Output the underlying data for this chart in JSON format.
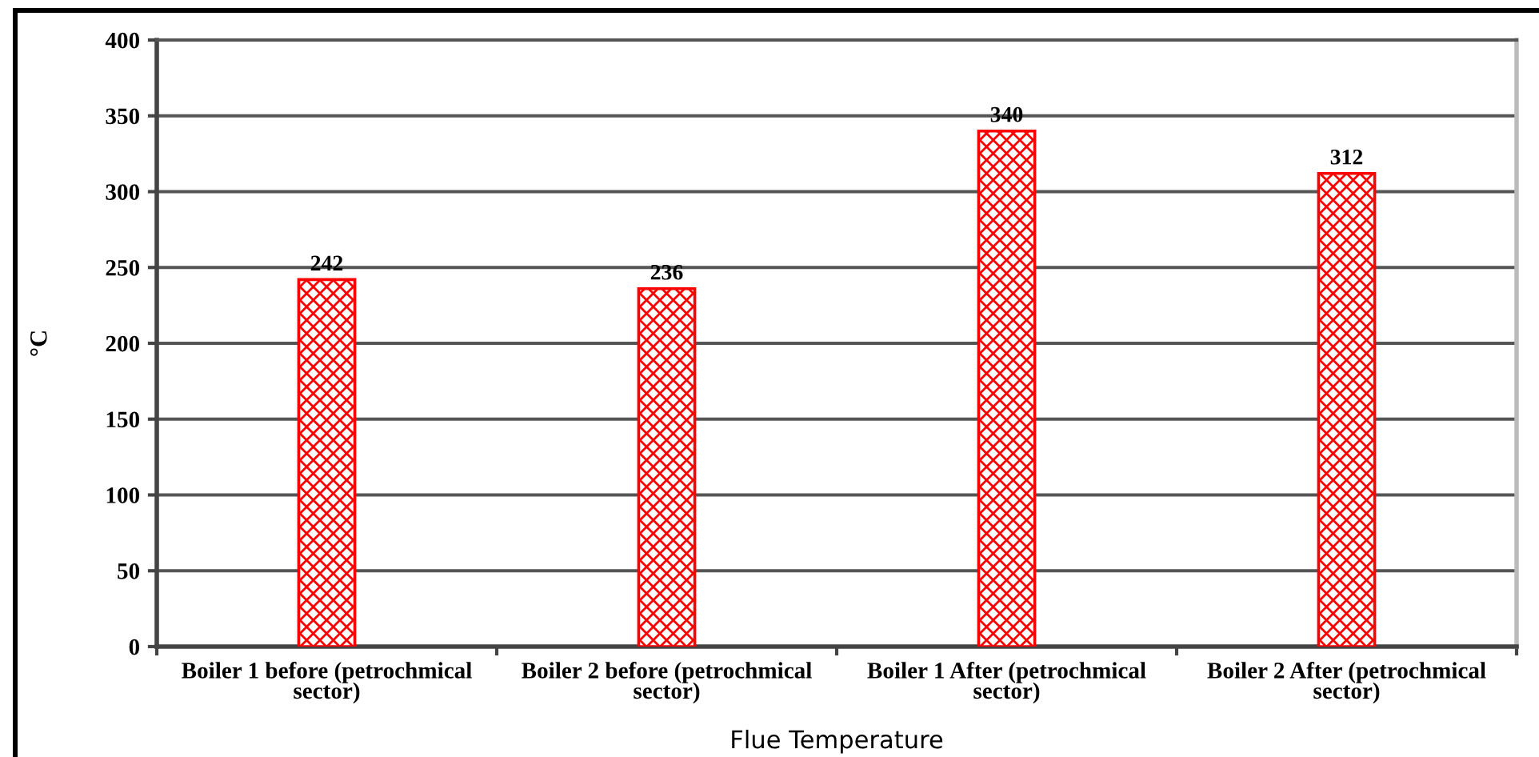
{
  "chart_data": {
    "type": "bar",
    "categories": [
      "Boiler 1 before (petrochmical sector)",
      "Boiler 2 before (petrochmical sector)",
      "Boiler 1 After (petrochmical sector)",
      "Boiler 2 After (petrochmical sector)"
    ],
    "values": [
      242,
      236,
      340,
      312
    ],
    "color": "#ff0000",
    "xlabel": "Flue Temperature",
    "ylabel": "°C",
    "ylim": [
      0,
      400
    ],
    "yticks": [
      0,
      50,
      100,
      150,
      200,
      250,
      300,
      350,
      400
    ],
    "grid": "y",
    "data_labels": true,
    "legend": false
  }
}
